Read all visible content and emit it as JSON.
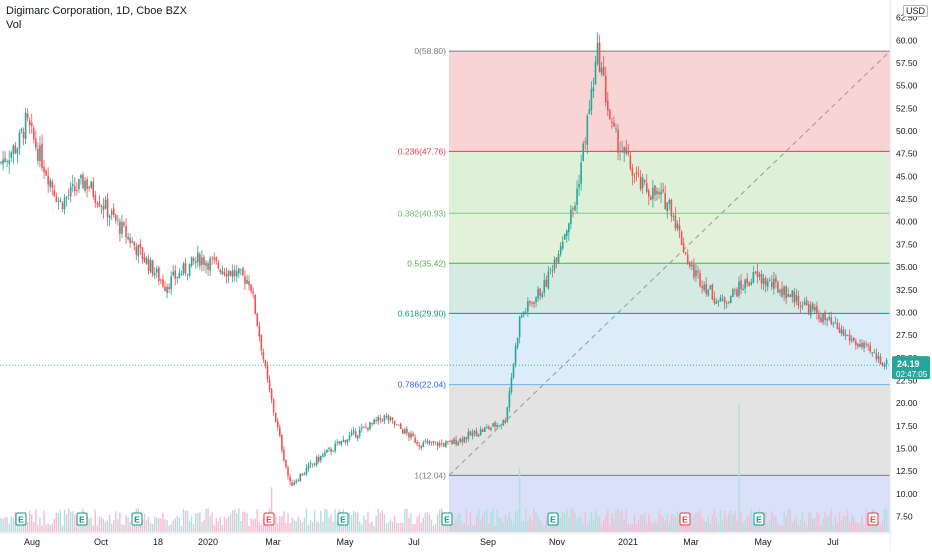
{
  "header": {
    "symbol_line": "Digimarc Corporation, 1D, Cboe BZX",
    "volume_label": "Vol",
    "currency": "USD"
  },
  "price_axis": {
    "ticks": [
      62.5,
      60.0,
      57.5,
      55.0,
      52.5,
      50.0,
      47.5,
      45.0,
      42.5,
      40.0,
      37.5,
      35.0,
      32.5,
      30.0,
      27.5,
      25.0,
      22.5,
      20.0,
      17.5,
      15.0,
      12.5,
      10.0,
      7.5
    ],
    "tick_labels": [
      "62.50",
      "60.00",
      "57.50",
      "55.00",
      "52.50",
      "50.00",
      "47.50",
      "45.00",
      "42.50",
      "40.00",
      "37.50",
      "35.00",
      "32.50",
      "30.00",
      "27.50",
      "25.00",
      "22.50",
      "20.00",
      "17.50",
      "15.00",
      "12.50",
      "10.00",
      "7.50"
    ]
  },
  "time_axis": {
    "labels": [
      "Aug",
      "Oct",
      "18",
      "2020",
      "Mar",
      "May",
      "Jul",
      "Sep",
      "Nov",
      "2021",
      "Mar",
      "May",
      "Jul"
    ]
  },
  "last_price": {
    "price": "24.19",
    "countdown": "02:47:05",
    "color": "#26a69a"
  },
  "fibonacci": {
    "levels": [
      {
        "ratio": "0",
        "price": 58.8,
        "label": "0(58.80)",
        "line": "#787b86",
        "fill": "#f7cccc",
        "text": "#787b86"
      },
      {
        "ratio": "0.236",
        "price": 47.76,
        "label": "0.236(47.76)",
        "line": "#f23645",
        "fill": "#d8edd0",
        "text": "#f23645"
      },
      {
        "ratio": "0.382",
        "price": 40.93,
        "label": "0.382(40.93)",
        "line": "#81c784",
        "fill": "#ddeed3",
        "text": "#66bb6a"
      },
      {
        "ratio": "0.5",
        "price": 35.42,
        "label": "0.5(35.42)",
        "line": "#4caf50",
        "fill": "#cde8df",
        "text": "#4caf50"
      },
      {
        "ratio": "0.618",
        "price": 29.9,
        "label": "0.618(29.90)",
        "line": "#089981",
        "fill": "#d6e9f8",
        "text": "#089981"
      },
      {
        "ratio": "0.786",
        "price": 22.04,
        "label": "0.786(22.04)",
        "line": "#64b5f6",
        "fill": "#dedede",
        "text": "#2962ff"
      },
      {
        "ratio": "1",
        "price": 12.04,
        "label": "1(12.04)",
        "line": "#787b86",
        "fill": "#d1dcf8",
        "text": "#787b86"
      }
    ]
  },
  "earnings_markers": [
    {
      "label": "E",
      "kind": "past",
      "color": "#089981"
    },
    {
      "label": "E",
      "kind": "past",
      "color": "#089981"
    },
    {
      "label": "E",
      "kind": "past",
      "color": "#089981"
    },
    {
      "label": "E",
      "kind": "future",
      "color": "#f23645"
    },
    {
      "label": "E",
      "kind": "past",
      "color": "#089981"
    },
    {
      "label": "E",
      "kind": "past",
      "color": "#089981"
    },
    {
      "label": "E",
      "kind": "past",
      "color": "#089981"
    },
    {
      "label": "E",
      "kind": "future",
      "color": "#f23645"
    },
    {
      "label": "E",
      "kind": "past",
      "color": "#089981"
    },
    {
      "label": "E",
      "kind": "future",
      "color": "#f23645"
    }
  ],
  "colors": {
    "up": "#26a69a",
    "down": "#ef5350",
    "volume_up": "#b2dfdb",
    "volume_down": "#f8bbd0"
  },
  "chart_data": {
    "type": "candlestick",
    "title": "Digimarc Corporation, 1D, Cboe BZX",
    "ylabel": "USD",
    "ylim": [
      5.8,
      64.0
    ],
    "key_points": [
      {
        "t": "Jul 2019",
        "close": 46.5
      },
      {
        "t": "Aug 2019",
        "close": 48.5
      },
      {
        "t": "Aug 2019 peak",
        "close": 51.0
      },
      {
        "t": "Sep 2019",
        "close": 42.0
      },
      {
        "t": "Oct 2019",
        "close": 44.5
      },
      {
        "t": "Nov 2019",
        "close": 38.0
      },
      {
        "t": "Dec 2019",
        "close": 33.0
      },
      {
        "t": "Jan 2020",
        "close": 36.0
      },
      {
        "t": "Feb 2020",
        "close": 33.5
      },
      {
        "t": "Mar 2020",
        "close": 22.0
      },
      {
        "t": "Mar 2020 low",
        "close": 11.0
      },
      {
        "t": "Apr 2020",
        "close": 14.0
      },
      {
        "t": "May 2020",
        "close": 16.0
      },
      {
        "t": "Jun 2020",
        "close": 18.5
      },
      {
        "t": "Jul 2020",
        "close": 15.5
      },
      {
        "t": "Aug 2020",
        "close": 15.5
      },
      {
        "t": "Sep 2020",
        "close": 18.0
      },
      {
        "t": "Sep 2020 gap",
        "close": 29.5
      },
      {
        "t": "Oct 2020",
        "close": 33.0
      },
      {
        "t": "Nov 2020",
        "close": 42.0
      },
      {
        "t": "Dec 2020 peak",
        "close": 58.8
      },
      {
        "t": "Dec 2020",
        "close": 50.0
      },
      {
        "t": "Jan 2021",
        "close": 44.0
      },
      {
        "t": "Feb 2021",
        "close": 42.0
      },
      {
        "t": "Mar 2021",
        "close": 35.0
      },
      {
        "t": "Apr 2021",
        "close": 31.0
      },
      {
        "t": "May 2021",
        "close": 34.0
      },
      {
        "t": "Jun 2021",
        "close": 32.0
      },
      {
        "t": "Jul 2021",
        "close": 30.0
      },
      {
        "t": "Aug 2021",
        "close": 27.5
      },
      {
        "t": "Sep 2021",
        "close": 24.19
      }
    ],
    "volume_spikes": [
      {
        "t": "Mar 2020",
        "relative": 0.35
      },
      {
        "t": "Sep 2020",
        "relative": 0.5
      },
      {
        "t": "Apr 2021",
        "relative": 1.0
      }
    ]
  }
}
